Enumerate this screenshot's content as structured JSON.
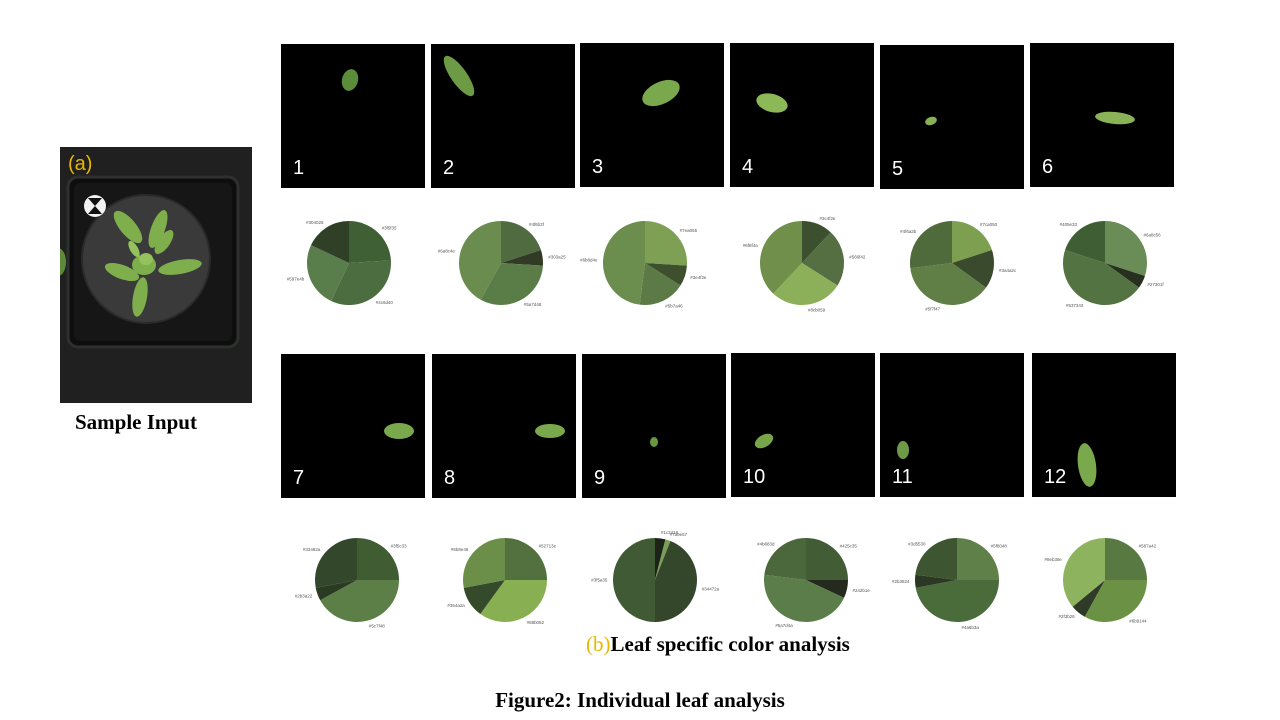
{
  "sample": {
    "tag": "(a)",
    "caption": "Sample Input"
  },
  "leaves": [
    {
      "label": "1",
      "pie_labels": [
        "#3f5f35",
        "#4c6d40",
        "#597e4b",
        "#304026"
      ],
      "pie_values": [
        24,
        33,
        25,
        18
      ]
    },
    {
      "label": "2",
      "pie_labels": [
        "#4f6b3f",
        "#303a25",
        "#5a7d48",
        "#6a8c4e"
      ],
      "pie_values": [
        20,
        6,
        32,
        42
      ]
    },
    {
      "label": "3",
      "pie_labels": [
        "#7ea055",
        "#3e4f2e",
        "#5b7a46",
        "#6b8d4e"
      ],
      "pie_values": [
        26,
        8,
        18,
        48
      ]
    },
    {
      "label": "4",
      "pie_labels": [
        "#3c4f2e",
        "#566f42",
        "#8cb059",
        "#6f8f4a"
      ],
      "pie_values": [
        12,
        22,
        28,
        38
      ]
    },
    {
      "label": "5",
      "pie_labels": [
        "#7ca050",
        "#3a4a2c",
        "#5f7f47",
        "#4f6a3b"
      ],
      "pie_values": [
        20,
        15,
        38,
        27
      ]
    },
    {
      "label": "6",
      "pie_labels": [
        "#6a8c56",
        "#27301f",
        "#537343",
        "#405e33"
      ],
      "pie_values": [
        30,
        5,
        45,
        20
      ]
    },
    {
      "label": "7",
      "pie_labels": [
        "#3f5c33",
        "#5c7f48",
        "#2b3a22",
        "#33482a"
      ],
      "pie_values": [
        25,
        42,
        5,
        28
      ]
    },
    {
      "label": "8",
      "pie_labels": [
        "#52713e",
        "#88b052",
        "#354a2a",
        "#6b8e48"
      ],
      "pie_values": [
        25,
        35,
        12,
        28
      ]
    },
    {
      "label": "9",
      "pie_labels": [
        "#1c2418",
        "#7a9e57",
        "#34472a",
        "#3f5a35"
      ],
      "pie_values": [
        4,
        2,
        44,
        50
      ]
    },
    {
      "label": "10",
      "pie_labels": [
        "#425c35",
        "#242b1e",
        "#5a7d4a",
        "#4b683d"
      ],
      "pie_values": [
        25,
        7,
        45,
        23
      ]
    },
    {
      "label": "11",
      "pie_labels": [
        "#5f8048",
        "#4a6b3a",
        "#2b3824",
        "#3d5530"
      ],
      "pie_values": [
        25,
        47,
        5,
        23
      ]
    },
    {
      "label": "12",
      "pie_labels": [
        "#587a42",
        "#6b9144",
        "#2f3b26",
        "#8eb35e"
      ],
      "pie_values": [
        25,
        33,
        6,
        36
      ]
    }
  ],
  "caption_b": {
    "tag": "(b)",
    "text": "Leaf  specific color analysis"
  },
  "figure_caption": "Figure2: Individual leaf analysis"
}
